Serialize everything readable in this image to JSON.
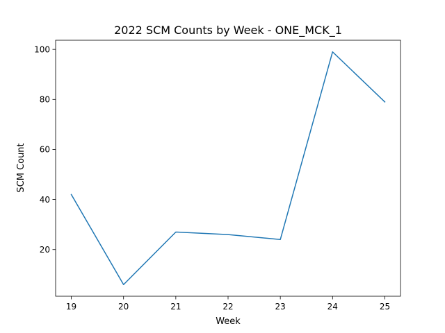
{
  "chart_data": {
    "type": "line",
    "title": "2022 SCM Counts by Week - ONE_MCK_1",
    "xlabel": "Week",
    "ylabel": "SCM Count",
    "x": [
      19,
      20,
      21,
      22,
      23,
      24,
      25
    ],
    "series": [
      {
        "values": [
          42,
          6,
          27,
          26,
          24,
          99,
          79
        ],
        "color": "#1f77b4"
      }
    ],
    "xlim": [
      18.7,
      25.3
    ],
    "ylim": [
      1.35,
      103.65
    ],
    "xticks": [
      19,
      20,
      21,
      22,
      23,
      24,
      25
    ],
    "yticks": [
      20,
      40,
      60,
      80,
      100
    ],
    "grid": false
  }
}
